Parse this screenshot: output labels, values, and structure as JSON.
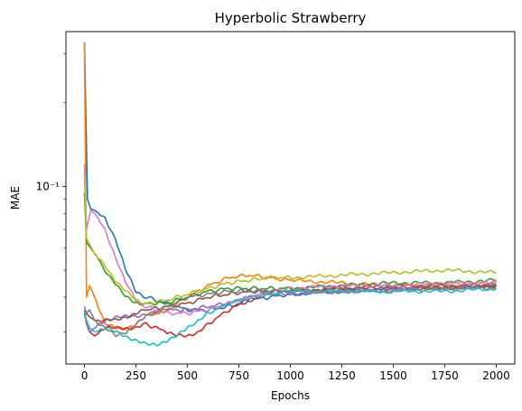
{
  "chart_data": {
    "type": "line",
    "title": "Hyperbolic Strawberry",
    "xlabel": "Epochs",
    "ylabel": "MAE",
    "xlim": [
      -90,
      2090
    ],
    "ylim": [
      0.023,
      0.36
    ],
    "yscale": "log",
    "x_ticks": [
      0,
      250,
      500,
      750,
      1000,
      1250,
      1500,
      1750,
      2000
    ],
    "y_tick_major": {
      "value": 0.1,
      "label": "10⁻¹"
    },
    "y_tick_minor": [
      0.03,
      0.04,
      0.05,
      0.06,
      0.07,
      0.08,
      0.09,
      0.2,
      0.3
    ],
    "grid": false,
    "legend": "none",
    "series": [
      {
        "color": "#1f77b4",
        "x": [
          0,
          15,
          30,
          50,
          100,
          150,
          200,
          250,
          300,
          400,
          500,
          600,
          700,
          800,
          900,
          1000,
          1250,
          1500,
          1750,
          2000
        ],
        "y": [
          0.33,
          0.09,
          0.083,
          0.082,
          0.077,
          0.065,
          0.05,
          0.042,
          0.04,
          0.038,
          0.036,
          0.036,
          0.037,
          0.039,
          0.04,
          0.041,
          0.042,
          0.043,
          0.043,
          0.044
        ]
      },
      {
        "color": "#ff7f0e",
        "x": [
          0,
          10,
          25,
          50,
          100,
          150,
          200,
          250,
          300,
          400,
          500,
          600,
          700,
          800,
          900,
          1000,
          1250,
          1500,
          1750,
          2000
        ],
        "y": [
          0.33,
          0.04,
          0.044,
          0.04,
          0.032,
          0.031,
          0.031,
          0.032,
          0.034,
          0.036,
          0.04,
          0.044,
          0.047,
          0.048,
          0.047,
          0.046,
          0.045,
          0.044,
          0.044,
          0.045
        ]
      },
      {
        "color": "#2ca02c",
        "x": [
          0,
          10,
          30,
          60,
          100,
          150,
          200,
          250,
          300,
          400,
          500,
          600,
          700,
          800,
          900,
          1000,
          1250,
          1500,
          1750,
          2000
        ],
        "y": [
          0.095,
          0.063,
          0.06,
          0.056,
          0.05,
          0.045,
          0.04,
          0.038,
          0.038,
          0.038,
          0.04,
          0.042,
          0.043,
          0.043,
          0.043,
          0.043,
          0.044,
          0.045,
          0.045,
          0.046
        ]
      },
      {
        "color": "#d62728",
        "x": [
          0,
          10,
          25,
          50,
          100,
          150,
          200,
          250,
          300,
          400,
          450,
          500,
          550,
          600,
          700,
          800,
          900,
          1000,
          1250,
          1500,
          1750,
          2000
        ],
        "y": [
          0.035,
          0.032,
          0.03,
          0.029,
          0.031,
          0.031,
          0.031,
          0.031,
          0.032,
          0.03,
          0.029,
          0.029,
          0.03,
          0.032,
          0.036,
          0.039,
          0.041,
          0.042,
          0.043,
          0.043,
          0.043,
          0.044
        ]
      },
      {
        "color": "#9467bd",
        "x": [
          0,
          10,
          25,
          50,
          100,
          150,
          200,
          250,
          300,
          400,
          500,
          600,
          700,
          800,
          900,
          1000,
          1250,
          1500,
          1750,
          2000
        ],
        "y": [
          0.036,
          0.032,
          0.03,
          0.031,
          0.033,
          0.034,
          0.034,
          0.034,
          0.035,
          0.036,
          0.036,
          0.037,
          0.038,
          0.04,
          0.041,
          0.041,
          0.042,
          0.043,
          0.043,
          0.044
        ]
      },
      {
        "color": "#8c564b",
        "x": [
          0,
          10,
          25,
          50,
          100,
          150,
          200,
          250,
          300,
          400,
          500,
          600,
          700,
          800,
          900,
          1000,
          1250,
          1500,
          1750,
          2000
        ],
        "y": [
          0.034,
          0.035,
          0.034,
          0.033,
          0.033,
          0.033,
          0.034,
          0.035,
          0.036,
          0.037,
          0.038,
          0.04,
          0.041,
          0.042,
          0.042,
          0.042,
          0.043,
          0.044,
          0.044,
          0.044
        ]
      },
      {
        "color": "#e377c2",
        "x": [
          0,
          10,
          30,
          50,
          100,
          150,
          200,
          250,
          300,
          400,
          500,
          600,
          700,
          800,
          900,
          1000,
          1250,
          1500,
          1750,
          2000
        ],
        "y": [
          0.12,
          0.07,
          0.082,
          0.08,
          0.07,
          0.056,
          0.045,
          0.039,
          0.037,
          0.035,
          0.035,
          0.036,
          0.038,
          0.04,
          0.042,
          0.043,
          0.044,
          0.044,
          0.045,
          0.045
        ]
      },
      {
        "color": "#7f7f7f",
        "x": [
          0,
          10,
          25,
          50,
          100,
          150,
          200,
          250,
          300,
          400,
          500,
          600,
          700,
          800,
          900,
          1000,
          1250,
          1500,
          1750,
          2000
        ],
        "y": [
          0.037,
          0.035,
          0.036,
          0.033,
          0.031,
          0.029,
          0.03,
          0.032,
          0.034,
          0.037,
          0.04,
          0.041,
          0.042,
          0.042,
          0.042,
          0.042,
          0.042,
          0.042,
          0.043,
          0.043
        ]
      },
      {
        "color": "#bcbd22",
        "x": [
          0,
          10,
          30,
          50,
          100,
          150,
          200,
          250,
          300,
          400,
          500,
          600,
          700,
          800,
          900,
          1000,
          1250,
          1500,
          1750,
          2000
        ],
        "y": [
          0.11,
          0.065,
          0.061,
          0.057,
          0.052,
          0.046,
          0.042,
          0.039,
          0.038,
          0.039,
          0.041,
          0.043,
          0.045,
          0.046,
          0.047,
          0.047,
          0.048,
          0.049,
          0.05,
          0.049
        ]
      },
      {
        "color": "#17becf",
        "x": [
          0,
          10,
          25,
          50,
          100,
          150,
          200,
          250,
          300,
          350,
          400,
          450,
          500,
          550,
          600,
          700,
          800,
          900,
          1000,
          1250,
          1500,
          1750,
          2000
        ],
        "y": [
          0.035,
          0.033,
          0.031,
          0.03,
          0.031,
          0.03,
          0.029,
          0.028,
          0.027,
          0.027,
          0.028,
          0.029,
          0.031,
          0.033,
          0.035,
          0.038,
          0.04,
          0.041,
          0.042,
          0.042,
          0.042,
          0.042,
          0.043
        ]
      }
    ]
  }
}
